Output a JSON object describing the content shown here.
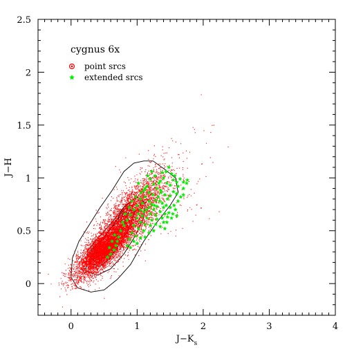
{
  "chart_data": {
    "type": "scatter",
    "title": "cygnus 6x",
    "xlabel": "J−K",
    "xlabel_subscript": "s",
    "ylabel": "J−H",
    "xlim": [
      -0.5,
      4
    ],
    "ylim": [
      -0.3,
      2.5
    ],
    "xticks": [
      0,
      1,
      2,
      3,
      4
    ],
    "xtick_labels": [
      "0",
      "1",
      "2",
      "3",
      "4"
    ],
    "yticks": [
      0,
      0.5,
      1,
      1.5,
      2,
      2.5
    ],
    "ytick_labels": [
      "0",
      "0.5",
      "1",
      "1.5",
      "2",
      "2.5"
    ],
    "grid": false,
    "legend_placement": "top-left",
    "series": [
      {
        "name": "point srcs",
        "color": "#ff0000",
        "marker": "dot",
        "distribution": {
          "components": [
            {
              "center": [
                0.5,
                0.34
              ],
              "sd": [
                0.22,
                0.14
              ],
              "corr": 0.8,
              "weight": 0.6
            },
            {
              "center": [
                0.9,
                0.65
              ],
              "sd": [
                0.26,
                0.2
              ],
              "corr": 0.75,
              "weight": 0.38
            },
            {
              "center": [
                1.4,
                0.85
              ],
              "sd": [
                0.4,
                0.3
              ],
              "corr": 0.5,
              "weight": 0.02
            }
          ],
          "n_points": 9000
        }
      },
      {
        "name": "extended srcs",
        "color": "#00ee00",
        "marker": "star",
        "points": [
          [
            1.02,
            0.95
          ],
          [
            1.1,
            0.88
          ],
          [
            1.15,
            0.92
          ],
          [
            1.2,
            0.99
          ],
          [
            1.25,
            0.94
          ],
          [
            1.3,
            0.9
          ],
          [
            1.35,
            0.97
          ],
          [
            1.4,
            1.0
          ],
          [
            1.45,
            0.95
          ],
          [
            1.5,
            0.93
          ],
          [
            1.55,
            0.98
          ],
          [
            1.6,
            0.96
          ],
          [
            1.65,
            0.99
          ],
          [
            1.7,
            0.96
          ],
          [
            1.75,
            0.95
          ],
          [
            1.38,
            1.05
          ],
          [
            1.48,
            1.1
          ],
          [
            1.52,
            1.04
          ],
          [
            1.05,
            0.8
          ],
          [
            1.08,
            0.76
          ],
          [
            1.12,
            0.82
          ],
          [
            1.18,
            0.78
          ],
          [
            1.22,
            0.75
          ],
          [
            1.28,
            0.79
          ],
          [
            1.32,
            0.82
          ],
          [
            1.36,
            0.86
          ],
          [
            1.42,
            0.84
          ],
          [
            1.46,
            0.8
          ],
          [
            1.5,
            0.83
          ],
          [
            1.55,
            0.87
          ],
          [
            1.6,
            0.85
          ],
          [
            1.66,
            0.82
          ],
          [
            1.7,
            0.84
          ],
          [
            1.18,
            0.72
          ],
          [
            1.25,
            0.7
          ],
          [
            1.3,
            0.73
          ],
          [
            1.38,
            0.76
          ],
          [
            1.44,
            0.74
          ],
          [
            1.5,
            0.72
          ],
          [
            1.56,
            0.74
          ],
          [
            1.1,
            0.68
          ],
          [
            1.2,
            0.66
          ],
          [
            1.28,
            0.65
          ],
          [
            1.35,
            0.68
          ],
          [
            1.42,
            0.66
          ],
          [
            1.48,
            0.67
          ],
          [
            1.52,
            0.62
          ],
          [
            1.15,
            0.62
          ],
          [
            1.22,
            0.6
          ],
          [
            1.3,
            0.61
          ],
          [
            1.38,
            0.62
          ],
          [
            1.45,
            0.58
          ],
          [
            1.58,
            0.7
          ],
          [
            1.62,
            0.78
          ],
          [
            1.0,
            0.62
          ],
          [
            1.05,
            0.58
          ],
          [
            1.12,
            0.56
          ],
          [
            1.2,
            0.55
          ],
          [
            1.28,
            0.56
          ],
          [
            1.35,
            0.54
          ],
          [
            1.42,
            0.52
          ],
          [
            0.95,
            0.55
          ],
          [
            1.02,
            0.52
          ],
          [
            1.1,
            0.5
          ],
          [
            1.18,
            0.48
          ],
          [
            1.25,
            0.5
          ],
          [
            0.92,
            0.48
          ],
          [
            0.98,
            0.45
          ],
          [
            1.05,
            0.43
          ],
          [
            1.12,
            0.44
          ],
          [
            0.88,
            0.42
          ],
          [
            0.95,
            0.4
          ],
          [
            1.0,
            0.38
          ],
          [
            0.85,
            0.36
          ],
          [
            0.9,
            0.34
          ],
          [
            0.8,
            0.55
          ],
          [
            0.85,
            0.6
          ],
          [
            0.9,
            0.65
          ],
          [
            0.95,
            0.7
          ],
          [
            1.0,
            0.74
          ],
          [
            1.05,
            0.7
          ],
          [
            0.88,
            0.72
          ],
          [
            0.82,
            0.66
          ],
          [
            0.78,
            0.58
          ],
          [
            0.75,
            0.5
          ],
          [
            0.72,
            0.44
          ],
          [
            0.7,
            0.4
          ],
          [
            0.68,
            0.36
          ],
          [
            0.65,
            0.32
          ],
          [
            0.6,
            0.28
          ],
          [
            0.55,
            0.25
          ],
          [
            0.58,
            0.34
          ],
          [
            0.62,
            0.4
          ],
          [
            0.66,
            0.46
          ],
          [
            1.12,
            0.9
          ],
          [
            1.18,
            0.86
          ],
          [
            1.24,
            0.84
          ],
          [
            1.06,
            0.86
          ],
          [
            0.98,
            0.82
          ],
          [
            0.92,
            0.78
          ],
          [
            1.4,
            0.58
          ],
          [
            1.46,
            0.63
          ],
          [
            1.54,
            0.66
          ],
          [
            1.6,
            0.64
          ],
          [
            1.33,
            0.95
          ],
          [
            1.27,
            1.02
          ],
          [
            1.22,
            1.06
          ],
          [
            1.16,
            1.02
          ],
          [
            1.7,
            0.9
          ],
          [
            1.76,
            0.98
          ],
          [
            1.62,
            0.92
          ],
          [
            1.57,
            1.02
          ],
          [
            1.44,
            1.06
          ],
          [
            1.36,
            0.88
          ],
          [
            1.02,
            0.66
          ],
          [
            1.08,
            0.64
          ],
          [
            1.14,
            0.7
          ],
          [
            1.26,
            0.74
          ],
          [
            1.34,
            0.78
          ],
          [
            1.4,
            0.72
          ]
        ]
      }
    ],
    "contours": [
      [
        [
          0.1,
          -0.04
        ],
        [
          0.3,
          -0.08
        ],
        [
          0.5,
          -0.06
        ],
        [
          0.7,
          0.04
        ],
        [
          0.9,
          0.18
        ],
        [
          1.1,
          0.4
        ],
        [
          1.3,
          0.58
        ],
        [
          1.5,
          0.74
        ],
        [
          1.62,
          0.86
        ],
        [
          1.58,
          1.0
        ],
        [
          1.42,
          1.08
        ],
        [
          1.24,
          1.16
        ],
        [
          1.1,
          1.16
        ],
        [
          0.95,
          1.14
        ],
        [
          0.8,
          1.06
        ],
        [
          0.62,
          0.88
        ],
        [
          0.44,
          0.72
        ],
        [
          0.28,
          0.56
        ],
        [
          0.12,
          0.4
        ],
        [
          0.02,
          0.24
        ],
        [
          0.0,
          0.06
        ],
        [
          0.1,
          -0.04
        ]
      ],
      [
        [
          0.22,
          0.12
        ],
        [
          0.4,
          0.08
        ],
        [
          0.6,
          0.14
        ],
        [
          0.8,
          0.28
        ],
        [
          0.98,
          0.46
        ],
        [
          1.1,
          0.62
        ],
        [
          1.12,
          0.76
        ],
        [
          1.0,
          0.82
        ],
        [
          0.82,
          0.74
        ],
        [
          0.62,
          0.58
        ],
        [
          0.42,
          0.44
        ],
        [
          0.26,
          0.32
        ],
        [
          0.22,
          0.12
        ]
      ],
      [
        [
          0.28,
          0.2
        ],
        [
          0.42,
          0.16
        ],
        [
          0.56,
          0.22
        ],
        [
          0.7,
          0.34
        ],
        [
          0.86,
          0.5
        ],
        [
          0.96,
          0.66
        ],
        [
          0.92,
          0.74
        ],
        [
          0.8,
          0.7
        ],
        [
          0.62,
          0.54
        ],
        [
          0.44,
          0.4
        ],
        [
          0.3,
          0.32
        ],
        [
          0.28,
          0.2
        ]
      ],
      [
        [
          0.3,
          0.24
        ],
        [
          0.42,
          0.2
        ],
        [
          0.52,
          0.26
        ],
        [
          0.62,
          0.36
        ],
        [
          0.74,
          0.48
        ],
        [
          0.86,
          0.62
        ],
        [
          0.82,
          0.68
        ],
        [
          0.72,
          0.62
        ],
        [
          0.58,
          0.5
        ],
        [
          0.44,
          0.4
        ],
        [
          0.32,
          0.32
        ],
        [
          0.3,
          0.24
        ]
      ],
      [
        [
          0.32,
          0.26
        ],
        [
          0.42,
          0.23
        ],
        [
          0.5,
          0.28
        ],
        [
          0.58,
          0.36
        ],
        [
          0.66,
          0.44
        ],
        [
          0.74,
          0.54
        ],
        [
          0.7,
          0.58
        ],
        [
          0.6,
          0.52
        ],
        [
          0.5,
          0.44
        ],
        [
          0.4,
          0.36
        ],
        [
          0.32,
          0.3
        ],
        [
          0.32,
          0.26
        ]
      ],
      [
        [
          0.34,
          0.28
        ],
        [
          0.42,
          0.26
        ],
        [
          0.48,
          0.3
        ],
        [
          0.54,
          0.36
        ],
        [
          0.58,
          0.42
        ],
        [
          0.54,
          0.46
        ],
        [
          0.46,
          0.4
        ],
        [
          0.38,
          0.34
        ],
        [
          0.34,
          0.28
        ]
      ],
      [
        [
          0.36,
          0.3
        ],
        [
          0.42,
          0.29
        ],
        [
          0.46,
          0.32
        ],
        [
          0.48,
          0.36
        ],
        [
          0.44,
          0.38
        ],
        [
          0.38,
          0.34
        ],
        [
          0.36,
          0.3
        ]
      ],
      [
        [
          0.72,
          0.58
        ],
        [
          0.82,
          0.62
        ],
        [
          0.9,
          0.7
        ],
        [
          0.88,
          0.76
        ],
        [
          0.8,
          0.72
        ],
        [
          0.72,
          0.64
        ],
        [
          0.72,
          0.58
        ]
      ],
      [
        [
          0.76,
          0.62
        ],
        [
          0.84,
          0.66
        ],
        [
          0.86,
          0.72
        ],
        [
          0.8,
          0.7
        ],
        [
          0.76,
          0.62
        ]
      ]
    ]
  }
}
